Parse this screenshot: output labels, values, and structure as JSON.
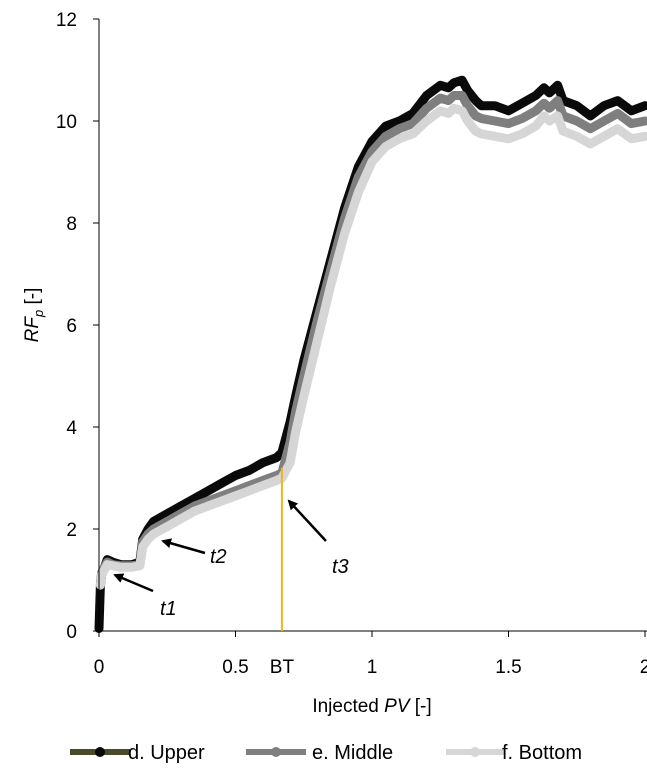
{
  "chart_data": {
    "type": "line",
    "xlabel_prefix": "Injected ",
    "xlabel_var": "PV",
    "xlabel_suffix": " [-]",
    "ylabel_var": "RF",
    "ylabel_sub": "p",
    "ylabel_suffix": " [-]",
    "xlim": [
      0,
      2
    ],
    "ylim": [
      0,
      12
    ],
    "xticks": [
      "0",
      "0.5",
      "1",
      "1.5",
      "2"
    ],
    "yticks": [
      "0",
      "2",
      "4",
      "6",
      "8",
      "10",
      "12"
    ],
    "grid": false,
    "legend_position": "bottom",
    "colors": {
      "upper": "#0a0a0a",
      "middle": "#7f7f7f",
      "bottom": "#d6d6d6",
      "bt_line": "#f2b418",
      "legend_line_upper": "#4a4a2a"
    },
    "breakthrough": {
      "x": 0.67,
      "label": "BT"
    },
    "annotations": [
      {
        "label": "t1",
        "x": 0.03,
        "y": 1.25
      },
      {
        "label": "t2",
        "x": 0.22,
        "y": 1.7
      },
      {
        "label": "t3",
        "x": 0.69,
        "y": 2.6
      }
    ],
    "series": [
      {
        "name": "d. Upper",
        "key": "upper",
        "x": [
          0,
          0.005,
          0.01,
          0.03,
          0.05,
          0.08,
          0.12,
          0.15,
          0.16,
          0.18,
          0.2,
          0.25,
          0.3,
          0.35,
          0.4,
          0.45,
          0.5,
          0.55,
          0.6,
          0.65,
          0.67,
          0.7,
          0.72,
          0.75,
          0.8,
          0.85,
          0.9,
          0.95,
          1.0,
          1.05,
          1.1,
          1.15,
          1.2,
          1.25,
          1.28,
          1.3,
          1.33,
          1.35,
          1.38,
          1.4,
          1.45,
          1.5,
          1.55,
          1.6,
          1.63,
          1.65,
          1.68,
          1.7,
          1.75,
          1.8,
          1.85,
          1.9,
          1.95,
          2.0
        ],
        "y": [
          0.05,
          0.9,
          1.1,
          1.4,
          1.35,
          1.3,
          1.3,
          1.35,
          1.8,
          2.0,
          2.15,
          2.3,
          2.45,
          2.6,
          2.75,
          2.9,
          3.05,
          3.15,
          3.3,
          3.4,
          3.5,
          4.1,
          4.6,
          5.3,
          6.3,
          7.3,
          8.3,
          9.1,
          9.6,
          9.9,
          10.0,
          10.15,
          10.5,
          10.7,
          10.65,
          10.75,
          10.8,
          10.6,
          10.4,
          10.3,
          10.3,
          10.2,
          10.35,
          10.5,
          10.65,
          10.55,
          10.7,
          10.4,
          10.3,
          10.1,
          10.3,
          10.4,
          10.2,
          10.3
        ]
      },
      {
        "name": "e. Middle",
        "key": "middle",
        "x": [
          0.005,
          0.01,
          0.03,
          0.05,
          0.08,
          0.12,
          0.15,
          0.16,
          0.18,
          0.2,
          0.25,
          0.3,
          0.35,
          0.4,
          0.45,
          0.5,
          0.55,
          0.6,
          0.65,
          0.67,
          0.7,
          0.72,
          0.75,
          0.8,
          0.85,
          0.9,
          0.95,
          1.0,
          1.05,
          1.1,
          1.15,
          1.2,
          1.25,
          1.28,
          1.3,
          1.33,
          1.35,
          1.38,
          1.4,
          1.45,
          1.5,
          1.55,
          1.6,
          1.63,
          1.65,
          1.68,
          1.7,
          1.75,
          1.8,
          1.85,
          1.9,
          1.95,
          2.0
        ],
        "y": [
          0.95,
          1.15,
          1.35,
          1.3,
          1.28,
          1.28,
          1.3,
          1.75,
          1.9,
          2.0,
          2.15,
          2.3,
          2.45,
          2.55,
          2.65,
          2.75,
          2.85,
          2.95,
          3.05,
          3.1,
          3.7,
          4.3,
          5.0,
          6.1,
          7.1,
          8.1,
          8.9,
          9.4,
          9.7,
          9.85,
          9.95,
          10.25,
          10.45,
          10.4,
          10.5,
          10.5,
          10.3,
          10.1,
          10.05,
          10.0,
          9.95,
          10.05,
          10.2,
          10.35,
          10.25,
          10.4,
          10.1,
          10.0,
          9.85,
          10.0,
          10.15,
          9.95,
          10.0
        ]
      },
      {
        "name": "f.  Bottom",
        "key": "bottom",
        "x": [
          0.005,
          0.01,
          0.03,
          0.05,
          0.08,
          0.12,
          0.15,
          0.16,
          0.18,
          0.2,
          0.25,
          0.3,
          0.35,
          0.4,
          0.45,
          0.5,
          0.55,
          0.6,
          0.65,
          0.67,
          0.7,
          0.72,
          0.75,
          0.8,
          0.85,
          0.9,
          0.95,
          1.0,
          1.05,
          1.1,
          1.15,
          1.2,
          1.25,
          1.28,
          1.3,
          1.33,
          1.35,
          1.38,
          1.4,
          1.45,
          1.5,
          1.55,
          1.6,
          1.63,
          1.65,
          1.68,
          1.7,
          1.75,
          1.8,
          1.85,
          1.9,
          1.95,
          2.0
        ],
        "y": [
          0.9,
          1.1,
          1.3,
          1.28,
          1.25,
          1.25,
          1.28,
          1.65,
          1.8,
          1.9,
          2.05,
          2.2,
          2.35,
          2.45,
          2.55,
          2.65,
          2.75,
          2.85,
          2.95,
          3.0,
          3.3,
          3.9,
          4.6,
          5.7,
          6.8,
          7.8,
          8.6,
          9.2,
          9.5,
          9.65,
          9.75,
          10.0,
          10.2,
          10.15,
          10.25,
          10.2,
          10.0,
          9.8,
          9.75,
          9.7,
          9.65,
          9.75,
          9.9,
          10.1,
          10.0,
          10.1,
          9.8,
          9.7,
          9.55,
          9.7,
          9.85,
          9.65,
          9.7
        ]
      }
    ]
  }
}
